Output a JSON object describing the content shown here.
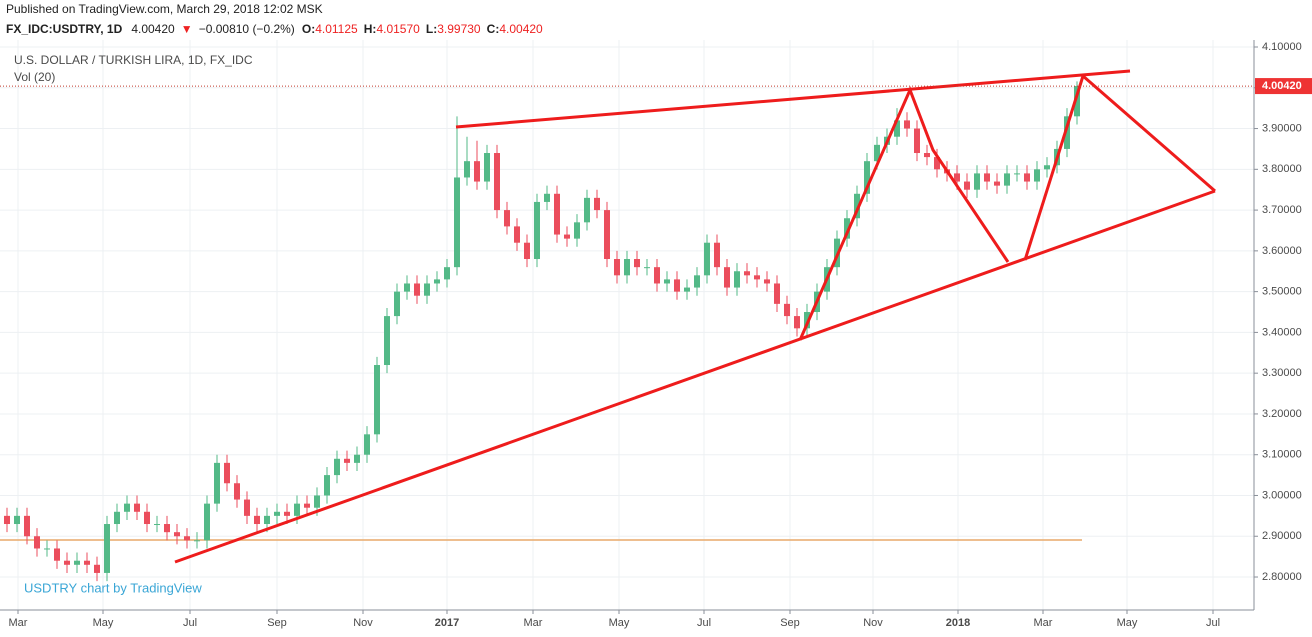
{
  "header": {
    "published": "Published on TradingView.com, March 29, 2018 12:02 MSK",
    "symbol": "FX_IDC:USDTRY, 1D",
    "last": "4.00420",
    "arrow": "▼",
    "change": "−0.00810 (−0.2%)",
    "o_label": "O:",
    "o": "4.01125",
    "h_label": "H:",
    "h": "4.01570",
    "l_label": "L:",
    "l": "3.99730",
    "c_label": "C:",
    "c": "4.00420"
  },
  "chart_data": {
    "type": "candlestick",
    "legend_title": "U.S. DOLLAR / TURKISH LIRA, 1D, FX_IDC",
    "volume_label": "Vol (20)",
    "watermark": "USDTRY chart by TradingView",
    "up_color": "#53b987",
    "down_color": "#eb4d5c",
    "open": [
      2.95,
      2.93,
      2.95,
      2.9,
      2.87,
      2.87,
      2.84,
      2.83,
      2.84,
      2.83,
      2.81,
      2.93,
      2.96,
      2.98,
      2.96,
      2.93,
      2.93,
      2.91,
      2.9,
      2.89,
      2.89,
      2.98,
      3.08,
      3.03,
      2.99,
      2.95,
      2.93,
      2.95,
      2.96,
      2.95,
      2.98,
      2.97,
      3.0,
      3.05,
      3.09,
      3.08,
      3.1,
      3.15,
      3.32,
      3.44,
      3.5,
      3.52,
      3.49,
      3.52,
      3.53,
      3.56,
      3.78,
      3.82,
      3.77,
      3.84,
      3.7,
      3.66,
      3.62,
      3.58,
      3.72,
      3.74,
      3.64,
      3.63,
      3.67,
      3.73,
      3.7,
      3.58,
      3.54,
      3.58,
      3.56,
      3.56,
      3.52,
      3.53,
      3.5,
      3.51,
      3.54,
      3.62,
      3.56,
      3.51,
      3.55,
      3.54,
      3.53,
      3.52,
      3.47,
      3.44,
      3.41,
      3.45,
      3.5,
      3.56,
      3.63,
      3.68,
      3.74,
      3.82,
      3.86,
      3.88,
      3.92,
      3.9,
      3.84,
      3.83,
      3.8,
      3.79,
      3.77,
      3.75,
      3.79,
      3.77,
      3.76,
      3.79,
      3.79,
      3.77,
      3.8,
      3.81,
      3.85,
      3.93
    ],
    "high": [
      2.97,
      2.97,
      2.97,
      2.92,
      2.89,
      2.89,
      2.86,
      2.86,
      2.86,
      2.85,
      2.95,
      2.98,
      3.0,
      3.0,
      2.98,
      2.95,
      2.95,
      2.93,
      2.92,
      2.91,
      3.0,
      3.1,
      3.1,
      3.05,
      3.01,
      2.97,
      2.97,
      2.98,
      2.98,
      3.0,
      3.0,
      3.02,
      3.07,
      3.11,
      3.11,
      3.12,
      3.17,
      3.34,
      3.46,
      3.52,
      3.54,
      3.54,
      3.54,
      3.55,
      3.58,
      3.93,
      3.88,
      3.87,
      3.86,
      3.86,
      3.72,
      3.68,
      3.64,
      3.74,
      3.76,
      3.76,
      3.66,
      3.69,
      3.75,
      3.75,
      3.72,
      3.6,
      3.6,
      3.6,
      3.58,
      3.58,
      3.55,
      3.55,
      3.53,
      3.56,
      3.64,
      3.64,
      3.58,
      3.57,
      3.57,
      3.56,
      3.55,
      3.54,
      3.49,
      3.46,
      3.47,
      3.52,
      3.58,
      3.65,
      3.7,
      3.76,
      3.84,
      3.88,
      3.9,
      3.95,
      3.94,
      3.92,
      3.86,
      3.85,
      3.82,
      3.81,
      3.79,
      3.81,
      3.81,
      3.79,
      3.81,
      3.81,
      3.81,
      3.82,
      3.83,
      3.87,
      3.95,
      4.0157
    ],
    "low": [
      2.91,
      2.91,
      2.88,
      2.85,
      2.85,
      2.82,
      2.81,
      2.81,
      2.81,
      2.79,
      2.79,
      2.91,
      2.94,
      2.94,
      2.91,
      2.91,
      2.89,
      2.88,
      2.87,
      2.87,
      2.87,
      2.96,
      3.01,
      2.97,
      2.93,
      2.91,
      2.91,
      2.93,
      2.93,
      2.93,
      2.95,
      2.95,
      2.98,
      3.03,
      3.06,
      3.06,
      3.08,
      3.13,
      3.3,
      3.42,
      3.48,
      3.47,
      3.47,
      3.5,
      3.51,
      3.54,
      3.76,
      3.75,
      3.75,
      3.68,
      3.64,
      3.6,
      3.56,
      3.56,
      3.7,
      3.62,
      3.61,
      3.61,
      3.65,
      3.68,
      3.56,
      3.52,
      3.52,
      3.54,
      3.54,
      3.5,
      3.5,
      3.48,
      3.48,
      3.49,
      3.52,
      3.54,
      3.49,
      3.49,
      3.52,
      3.51,
      3.5,
      3.45,
      3.42,
      3.39,
      3.39,
      3.43,
      3.48,
      3.54,
      3.61,
      3.66,
      3.72,
      3.8,
      3.84,
      3.86,
      3.88,
      3.82,
      3.81,
      3.78,
      3.77,
      3.75,
      3.73,
      3.73,
      3.75,
      3.74,
      3.74,
      3.77,
      3.75,
      3.75,
      3.78,
      3.79,
      3.83,
      3.91
    ],
    "close": [
      2.93,
      2.95,
      2.9,
      2.87,
      2.87,
      2.84,
      2.83,
      2.84,
      2.83,
      2.81,
      2.93,
      2.96,
      2.98,
      2.96,
      2.93,
      2.93,
      2.91,
      2.9,
      2.89,
      2.89,
      2.98,
      3.08,
      3.03,
      2.99,
      2.95,
      2.93,
      2.95,
      2.96,
      2.95,
      2.98,
      2.97,
      3.0,
      3.05,
      3.09,
      3.08,
      3.1,
      3.15,
      3.32,
      3.44,
      3.5,
      3.52,
      3.49,
      3.52,
      3.53,
      3.56,
      3.78,
      3.82,
      3.77,
      3.84,
      3.7,
      3.66,
      3.62,
      3.58,
      3.72,
      3.74,
      3.64,
      3.63,
      3.67,
      3.73,
      3.7,
      3.58,
      3.54,
      3.58,
      3.56,
      3.56,
      3.52,
      3.53,
      3.5,
      3.51,
      3.54,
      3.62,
      3.56,
      3.51,
      3.55,
      3.54,
      3.53,
      3.52,
      3.47,
      3.44,
      3.41,
      3.45,
      3.5,
      3.56,
      3.63,
      3.68,
      3.74,
      3.82,
      3.86,
      3.88,
      3.92,
      3.9,
      3.84,
      3.83,
      3.8,
      3.79,
      3.77,
      3.75,
      3.79,
      3.77,
      3.76,
      3.79,
      3.79,
      3.77,
      3.8,
      3.81,
      3.85,
      3.93,
      4.0042
    ],
    "last_price": 4.0042,
    "last_price_label": "4.00420",
    "xlim": [
      -0.7,
      124.7
    ],
    "xticks": [
      {
        "value": 1.1,
        "label": "Mar"
      },
      {
        "value": 9.6,
        "label": "May"
      },
      {
        "value": 18.3,
        "label": "Jul"
      },
      {
        "value": 27,
        "label": "Sep"
      },
      {
        "value": 35.6,
        "label": "Nov"
      },
      {
        "value": 44,
        "label": "2017"
      },
      {
        "value": 52.6,
        "label": "Mar"
      },
      {
        "value": 61.2,
        "label": "May"
      },
      {
        "value": 69.7,
        "label": "Jul"
      },
      {
        "value": 78.3,
        "label": "Sep"
      },
      {
        "value": 86.6,
        "label": "Nov"
      },
      {
        "value": 95.1,
        "label": "2018"
      },
      {
        "value": 103.6,
        "label": "Mar"
      },
      {
        "value": 112,
        "label": "May"
      },
      {
        "value": 120.6,
        "label": "Jul"
      }
    ],
    "ylim": [
      2.7191,
      4.1172
    ],
    "yticks": [
      {
        "value": 2.8,
        "label": "2.80000"
      },
      {
        "value": 2.9,
        "label": "2.90000"
      },
      {
        "value": 3.0,
        "label": "3.00000"
      },
      {
        "value": 3.1,
        "label": "3.10000"
      },
      {
        "value": 3.2,
        "label": "3.20000"
      },
      {
        "value": 3.3,
        "label": "3.30000"
      },
      {
        "value": 3.4,
        "label": "3.40000"
      },
      {
        "value": 3.5,
        "label": "3.50000"
      },
      {
        "value": 3.6,
        "label": "3.60000"
      },
      {
        "value": 3.7,
        "label": "3.70000"
      },
      {
        "value": 3.8,
        "label": "3.80000"
      },
      {
        "value": 3.9,
        "label": "3.90000"
      },
      {
        "value": 4.0,
        "label": "4.00000"
      },
      {
        "value": 4.1,
        "label": "4.10000"
      }
    ],
    "grid": true
  }
}
